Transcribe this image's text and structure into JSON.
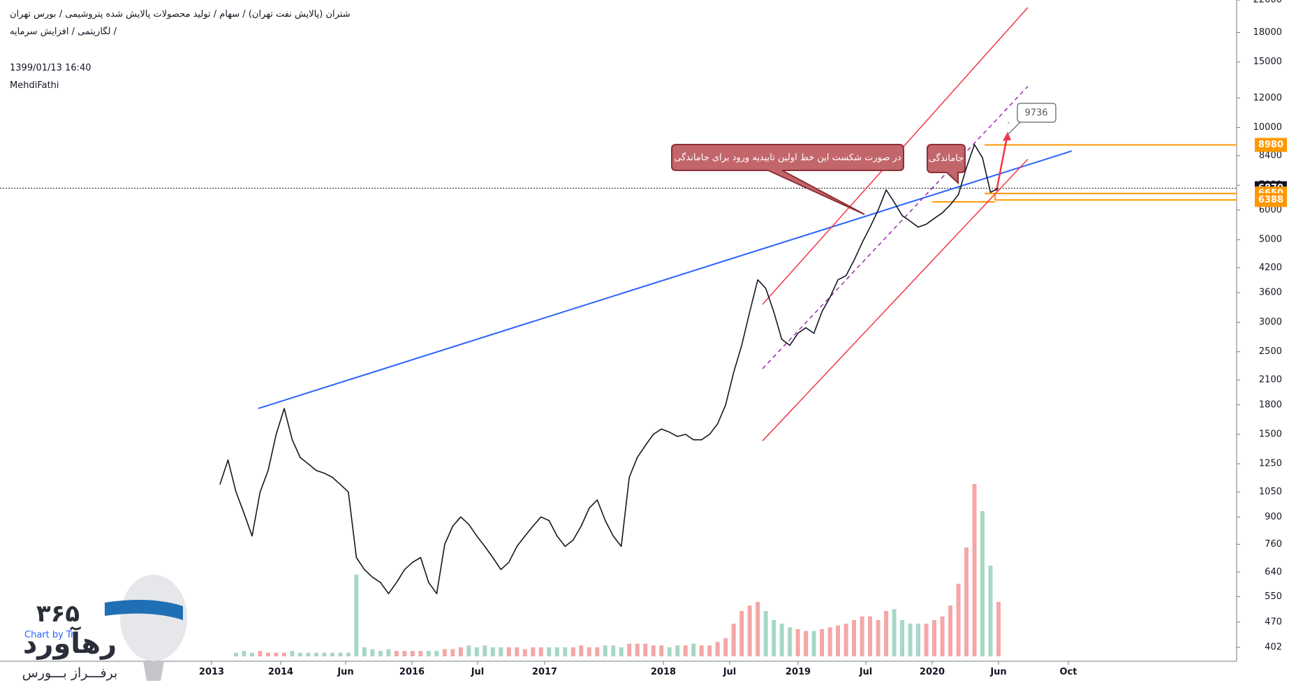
{
  "header": {
    "line1": "شتران (پالایش نفت تهران) / سهام / تولید محصولات پالایش شده پتروشیمی / بورس تهران",
    "line2": "لگاریتمی / افزایش سرمایه /",
    "datetime": "1399/01/13 16:40",
    "author": "MehdiFathi"
  },
  "annotations": {
    "callout_main": "در صورت شکست این خط اولین تاییدیه ورود برای جاماندگی",
    "callout_small": "جاماندگی",
    "target_label": "9736"
  },
  "price_tags": [
    {
      "value": "8980",
      "bg": "#ff9800",
      "fg": "#ffffff"
    },
    {
      "value": "6870",
      "bg": "#131722",
      "fg": "#ffffff"
    },
    {
      "value": "6650",
      "bg": "#ff9800",
      "fg": "#ffffff"
    },
    {
      "value": "6388",
      "bg": "#ff9800",
      "fg": "#ffffff"
    }
  ],
  "logo": {
    "digits": "۳۶۵",
    "name": "رهآورد",
    "tagline": "برفـــراز بـــورس",
    "watermark": "Chart by Tr"
  },
  "chart_data": {
    "type": "line",
    "scale": "log",
    "ylim": [
      380,
      22000
    ],
    "y_ticks": [
      "22000",
      "18000",
      "15000",
      "12000",
      "10000",
      "8400",
      "7000",
      "6000",
      "5000",
      "4200",
      "3600",
      "3000",
      "2500",
      "2100",
      "1800",
      "1500",
      "1250",
      "1050",
      "900",
      "760",
      "640",
      "550",
      "470",
      "402"
    ],
    "x_ticks": [
      "2013",
      "2014",
      "Jun",
      "2016",
      "Jul",
      "2017",
      "2018",
      "Jul",
      "2019",
      "Jul",
      "2020",
      "Jun",
      "Oct"
    ],
    "series": [
      {
        "values": [
          1100,
          1280,
          1050,
          920,
          800,
          1050,
          1200,
          1500,
          1760,
          1450,
          1300,
          1250,
          1200,
          1180,
          1150,
          1100,
          1050,
          700,
          650,
          620,
          600,
          560,
          600,
          650,
          680,
          700,
          600,
          560,
          760,
          850,
          900,
          860,
          800,
          750,
          700,
          650,
          680,
          750,
          800,
          850,
          900,
          880,
          800,
          750,
          780,
          850,
          950,
          1000,
          880,
          800,
          750,
          1150,
          1300,
          1400,
          1500,
          1550,
          1520,
          1480,
          1500,
          1450,
          1450,
          1500,
          1600,
          1800,
          2200,
          2600,
          3200,
          3900,
          3700,
          3200,
          2700,
          2600,
          2800,
          2900,
          2800,
          3200,
          3500,
          3900,
          4000,
          4400,
          4900,
          5400,
          6000,
          6800,
          6300,
          5800,
          5600,
          5400,
          5500,
          5700,
          5900,
          6200,
          6600,
          7800,
          9000,
          8300,
          6700,
          6870
        ]
      }
    ],
    "volume": {
      "values": [
        0,
        0,
        0.02,
        0.03,
        0.02,
        0.03,
        0.02,
        0.02,
        0.02,
        0.03,
        0.02,
        0.02,
        0.02,
        0.02,
        0.02,
        0.02,
        0.02,
        0.45,
        0.05,
        0.04,
        0.03,
        0.04,
        0.03,
        0.03,
        0.03,
        0.03,
        0.03,
        0.03,
        0.04,
        0.04,
        0.05,
        0.06,
        0.05,
        0.06,
        0.05,
        0.05,
        0.05,
        0.05,
        0.04,
        0.05,
        0.05,
        0.05,
        0.05,
        0.05,
        0.05,
        0.06,
        0.05,
        0.05,
        0.06,
        0.06,
        0.05,
        0.07,
        0.07,
        0.07,
        0.06,
        0.06,
        0.05,
        0.06,
        0.06,
        0.07,
        0.06,
        0.06,
        0.08,
        0.1,
        0.18,
        0.25,
        0.28,
        0.3,
        0.25,
        0.2,
        0.18,
        0.16,
        0.15,
        0.14,
        0.14,
        0.15,
        0.16,
        0.17,
        0.18,
        0.2,
        0.22,
        0.22,
        0.2,
        0.25,
        0.26,
        0.2,
        0.18,
        0.18,
        0.18,
        0.2,
        0.22,
        0.28,
        0.4,
        0.6,
        0.95,
        0.8,
        0.5,
        0.3
      ],
      "ylim": [
        0,
        1
      ]
    },
    "horizontal_levels": [
      8980,
      6870,
      6650,
      6388
    ],
    "target": 9736,
    "colors": {
      "price": "#131722",
      "trendline": "#2962ff",
      "channel": "#f23645",
      "midline": "#9c27b0",
      "levels": "#ff9800",
      "volume_up": "#f4a7a7",
      "volume_down": "#a7d7c5",
      "callout": "#c2666b"
    }
  }
}
